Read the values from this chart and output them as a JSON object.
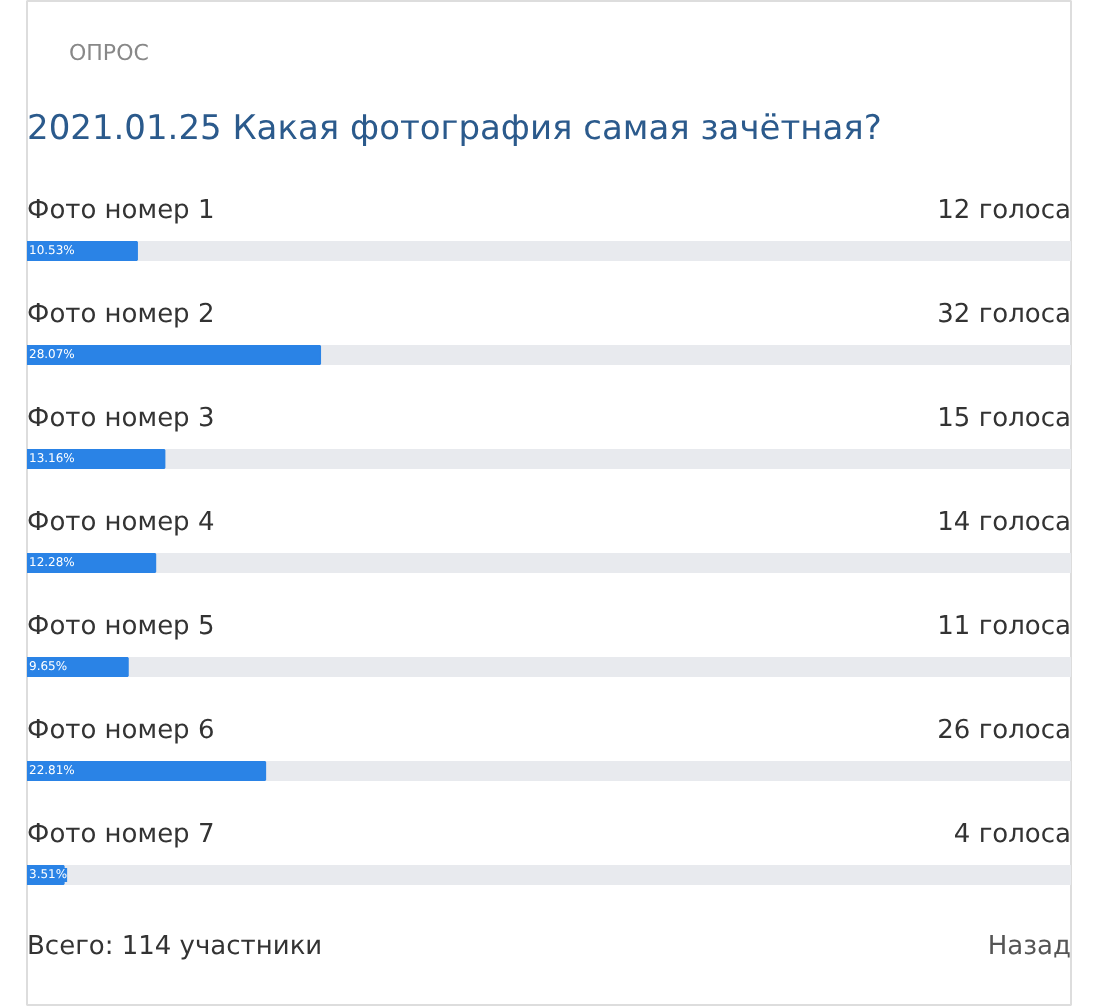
{
  "chart_data": {
    "type": "bar",
    "orientation": "horizontal",
    "subtitle": "ОПРОС",
    "title": "2021.01.25 Какая фотография самая зачётная?",
    "categories": [
      "Фото номер 1",
      "Фото номер 2",
      "Фото номер 3",
      "Фото номер 4",
      "Фото номер 5",
      "Фото номер 6",
      "Фото номер 7"
    ],
    "values": [
      10.53,
      28.07,
      13.16,
      12.28,
      9.65,
      22.81,
      3.51
    ],
    "value_labels": [
      "10.53%",
      "28.07%",
      "13.16%",
      "12.28%",
      "9.65%",
      "22.81%",
      "3.51%"
    ],
    "color": "#2a83e6",
    "xlim": [
      0,
      100
    ],
    "tick_labels": false,
    "grid": false,
    "annotations": [
      "12 голоса",
      "32 голоса",
      "15 голоса",
      "14 голоса",
      "11 голоса",
      "26 голоса",
      "4 голоса",
      "Всего: 114 участники",
      "Назад"
    ]
  }
}
